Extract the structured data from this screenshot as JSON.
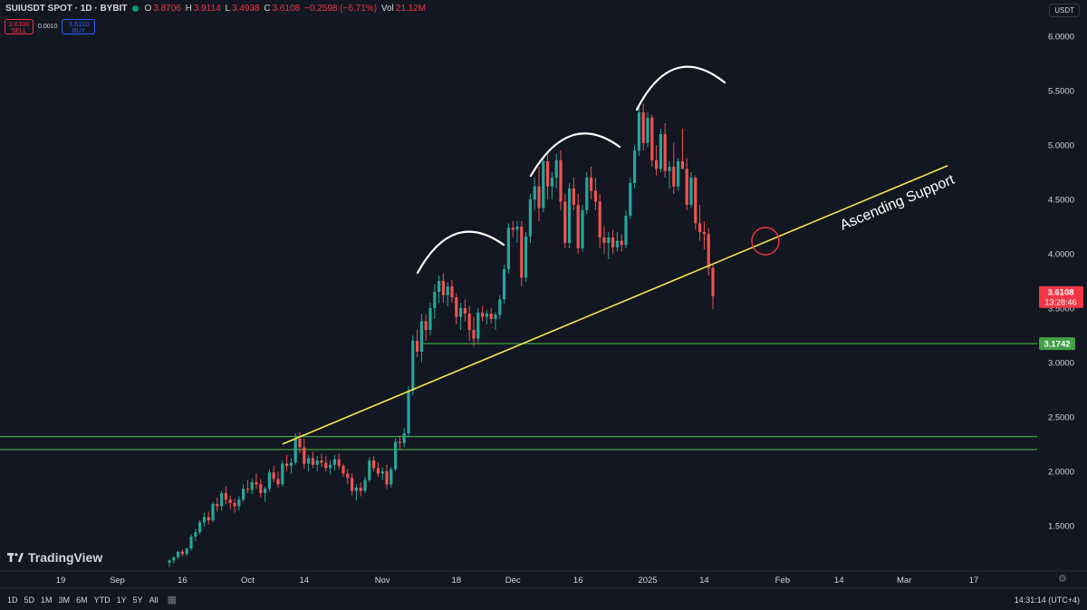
{
  "header": {
    "symbol": "SUIUSDT SPOT · 1D · BYBIT",
    "o_label": "O",
    "o_value": "3.8706",
    "h_label": "H",
    "h_value": "3.9114",
    "l_label": "L",
    "l_value": "3.4938",
    "c_label": "C",
    "c_value": "3.6108",
    "change": "−0.2598 (−6.71%)",
    "vol_label": "Vol",
    "vol_value": "21.12M"
  },
  "trade": {
    "sell_price": "3.6100",
    "sell_label": "SELL",
    "spread": "0.0010",
    "buy_price": "3.6110",
    "buy_label": "BUY"
  },
  "currency": "USDT",
  "brand": "TradingView",
  "timeframes": [
    "1D",
    "5D",
    "1M",
    "3M",
    "6M",
    "YTD",
    "1Y",
    "5Y",
    "All"
  ],
  "clock": "14:31:14 (UTC+4)",
  "colors": {
    "up": "#26a69a",
    "down": "#ef5350",
    "support_line": "#f6e94b",
    "level_line": "#43a047",
    "bg": "#131722"
  },
  "chart_data": {
    "type": "candlestick",
    "ylim": [
      1.15,
      6.1
    ],
    "y_ticks": [
      1.5,
      2.0,
      2.5,
      3.0,
      3.5,
      4.0,
      4.5,
      5.0,
      5.5,
      6.0
    ],
    "y_tick_labels": [
      "1.5000",
      "2.0000",
      "2.5000",
      "3.0000",
      "3.5000",
      "4.0000",
      "4.5000",
      "5.0000",
      "5.5000",
      "6.0000"
    ],
    "x_ticks": [
      {
        "label": "19",
        "date": "2024-08-19"
      },
      {
        "label": "Sep",
        "date": "2024-09-01"
      },
      {
        "label": "16",
        "date": "2024-09-16"
      },
      {
        "label": "Oct",
        "date": "2024-10-01"
      },
      {
        "label": "14",
        "date": "2024-10-14"
      },
      {
        "label": "Nov",
        "date": "2024-11-01"
      },
      {
        "label": "18",
        "date": "2024-11-18"
      },
      {
        "label": "Dec",
        "date": "2024-12-01"
      },
      {
        "label": "16",
        "date": "2024-12-16"
      },
      {
        "label": "2025",
        "date": "2025-01-01"
      },
      {
        "label": "14",
        "date": "2025-01-14"
      },
      {
        "label": "Feb",
        "date": "2025-02-01"
      },
      {
        "label": "14",
        "date": "2025-02-14"
      },
      {
        "label": "Mar",
        "date": "2025-03-01"
      },
      {
        "label": "17",
        "date": "2025-03-17"
      }
    ],
    "candles_start": "2024-09-13",
    "candles": [
      [
        1.16,
        1.19,
        1.12,
        1.18
      ],
      [
        1.18,
        1.22,
        1.15,
        1.21
      ],
      [
        1.21,
        1.27,
        1.19,
        1.26
      ],
      [
        1.26,
        1.28,
        1.22,
        1.24
      ],
      [
        1.24,
        1.3,
        1.22,
        1.29
      ],
      [
        1.29,
        1.42,
        1.27,
        1.4
      ],
      [
        1.4,
        1.47,
        1.36,
        1.44
      ],
      [
        1.44,
        1.55,
        1.42,
        1.53
      ],
      [
        1.53,
        1.62,
        1.49,
        1.58
      ],
      [
        1.58,
        1.63,
        1.51,
        1.55
      ],
      [
        1.55,
        1.72,
        1.53,
        1.7
      ],
      [
        1.7,
        1.76,
        1.63,
        1.68
      ],
      [
        1.68,
        1.82,
        1.64,
        1.8
      ],
      [
        1.8,
        1.86,
        1.7,
        1.74
      ],
      [
        1.74,
        1.78,
        1.65,
        1.71
      ],
      [
        1.71,
        1.75,
        1.62,
        1.68
      ],
      [
        1.68,
        1.77,
        1.64,
        1.74
      ],
      [
        1.74,
        1.88,
        1.72,
        1.84
      ],
      [
        1.84,
        1.92,
        1.8,
        1.83
      ],
      [
        1.83,
        1.93,
        1.79,
        1.9
      ],
      [
        1.9,
        1.98,
        1.84,
        1.88
      ],
      [
        1.88,
        1.93,
        1.76,
        1.8
      ],
      [
        1.8,
        1.86,
        1.72,
        1.84
      ],
      [
        1.84,
        2.02,
        1.81,
        1.99
      ],
      [
        1.99,
        2.05,
        1.9,
        1.93
      ],
      [
        1.93,
        2.0,
        1.85,
        1.88
      ],
      [
        1.88,
        2.1,
        1.86,
        2.07
      ],
      [
        2.07,
        2.15,
        2.0,
        2.05
      ],
      [
        2.05,
        2.12,
        1.98,
        2.08
      ],
      [
        2.08,
        2.35,
        2.06,
        2.3
      ],
      [
        2.3,
        2.36,
        2.17,
        2.22
      ],
      [
        2.22,
        2.3,
        2.02,
        2.07
      ],
      [
        2.07,
        2.15,
        2.0,
        2.12
      ],
      [
        2.12,
        2.18,
        2.03,
        2.06
      ],
      [
        2.06,
        2.14,
        2.0,
        2.1
      ],
      [
        2.1,
        2.16,
        2.04,
        2.08
      ],
      [
        2.08,
        2.14,
        2.0,
        2.03
      ],
      [
        2.03,
        2.1,
        1.97,
        2.06
      ],
      [
        2.06,
        2.15,
        2.01,
        2.11
      ],
      [
        2.11,
        2.16,
        2.02,
        2.05
      ],
      [
        2.05,
        2.07,
        1.95,
        1.98
      ],
      [
        1.98,
        2.02,
        1.88,
        1.94
      ],
      [
        1.94,
        1.98,
        1.78,
        1.82
      ],
      [
        1.82,
        1.88,
        1.73,
        1.85
      ],
      [
        1.85,
        1.9,
        1.77,
        1.82
      ],
      [
        1.82,
        1.95,
        1.8,
        1.92
      ],
      [
        1.92,
        2.13,
        1.9,
        2.1
      ],
      [
        2.1,
        2.14,
        2.0,
        2.03
      ],
      [
        2.03,
        2.08,
        1.95,
        1.98
      ],
      [
        1.98,
        2.04,
        1.92,
        2.0
      ],
      [
        2.0,
        2.06,
        1.84,
        1.88
      ],
      [
        1.88,
        2.04,
        1.85,
        2.02
      ],
      [
        2.02,
        2.3,
        2.0,
        2.27
      ],
      [
        2.27,
        2.33,
        2.2,
        2.26
      ],
      [
        2.26,
        2.4,
        2.22,
        2.35
      ],
      [
        2.35,
        2.78,
        2.31,
        2.74
      ],
      [
        2.74,
        3.25,
        2.7,
        3.2
      ],
      [
        3.2,
        3.3,
        3.05,
        3.1
      ],
      [
        3.1,
        3.45,
        3.0,
        3.38
      ],
      [
        3.38,
        3.44,
        3.2,
        3.3
      ],
      [
        3.3,
        3.55,
        3.25,
        3.5
      ],
      [
        3.5,
        3.72,
        3.4,
        3.65
      ],
      [
        3.65,
        3.8,
        3.55,
        3.75
      ],
      [
        3.75,
        3.82,
        3.55,
        3.62
      ],
      [
        3.62,
        3.74,
        3.52,
        3.7
      ],
      [
        3.7,
        3.76,
        3.55,
        3.6
      ],
      [
        3.6,
        3.64,
        3.35,
        3.42
      ],
      [
        3.42,
        3.55,
        3.3,
        3.5
      ],
      [
        3.5,
        3.58,
        3.38,
        3.45
      ],
      [
        3.45,
        3.52,
        3.2,
        3.3
      ],
      [
        3.3,
        3.42,
        3.15,
        3.22
      ],
      [
        3.22,
        3.5,
        3.18,
        3.46
      ],
      [
        3.46,
        3.52,
        3.38,
        3.42
      ],
      [
        3.42,
        3.48,
        3.35,
        3.45
      ],
      [
        3.45,
        3.5,
        3.36,
        3.4
      ],
      [
        3.4,
        3.46,
        3.3,
        3.44
      ],
      [
        3.44,
        3.62,
        3.4,
        3.58
      ],
      [
        3.58,
        3.9,
        3.54,
        3.86
      ],
      [
        3.86,
        4.28,
        3.82,
        4.24
      ],
      [
        4.24,
        4.3,
        4.15,
        4.22
      ],
      [
        4.22,
        4.3,
        4.1,
        4.25
      ],
      [
        4.25,
        4.3,
        3.7,
        3.78
      ],
      [
        3.78,
        4.2,
        3.74,
        4.16
      ],
      [
        4.16,
        4.55,
        4.1,
        4.5
      ],
      [
        4.5,
        4.7,
        4.4,
        4.62
      ],
      [
        4.62,
        4.8,
        4.3,
        4.42
      ],
      [
        4.42,
        4.9,
        4.38,
        4.85
      ],
      [
        4.85,
        4.92,
        4.5,
        4.62
      ],
      [
        4.62,
        4.75,
        4.5,
        4.7
      ],
      [
        4.7,
        4.92,
        4.6,
        4.86
      ],
      [
        4.86,
        4.95,
        4.4,
        4.48
      ],
      [
        4.48,
        4.55,
        4.05,
        4.1
      ],
      [
        4.1,
        4.65,
        4.05,
        4.6
      ],
      [
        4.6,
        4.7,
        4.4,
        4.45
      ],
      [
        4.45,
        4.55,
        4.0,
        4.05
      ],
      [
        4.05,
        4.45,
        4.02,
        4.4
      ],
      [
        4.4,
        4.75,
        4.36,
        4.7
      ],
      [
        4.7,
        4.8,
        4.5,
        4.58
      ],
      [
        4.58,
        4.7,
        4.4,
        4.48
      ],
      [
        4.48,
        4.55,
        4.05,
        4.15
      ],
      [
        4.15,
        4.25,
        4.0,
        4.1
      ],
      [
        4.1,
        4.2,
        3.95,
        4.15
      ],
      [
        4.15,
        4.22,
        4.0,
        4.06
      ],
      [
        4.06,
        4.2,
        4.02,
        4.12
      ],
      [
        4.12,
        4.18,
        4.02,
        4.08
      ],
      [
        4.08,
        4.4,
        4.05,
        4.35
      ],
      [
        4.35,
        4.7,
        4.32,
        4.65
      ],
      [
        4.65,
        5.0,
        4.6,
        4.95
      ],
      [
        4.95,
        5.35,
        4.9,
        5.3
      ],
      [
        5.3,
        5.38,
        4.95,
        5.02
      ],
      [
        5.02,
        5.3,
        4.98,
        5.25
      ],
      [
        5.25,
        5.28,
        4.8,
        4.86
      ],
      [
        4.86,
        5.0,
        4.72,
        4.78
      ],
      [
        4.78,
        5.15,
        4.75,
        5.1
      ],
      [
        5.1,
        5.2,
        4.7,
        4.76
      ],
      [
        4.76,
        4.85,
        4.6,
        4.8
      ],
      [
        4.8,
        5.02,
        4.55,
        4.62
      ],
      [
        4.62,
        4.88,
        4.58,
        4.85
      ],
      [
        4.85,
        5.15,
        4.78,
        4.78
      ],
      [
        4.78,
        4.88,
        4.4,
        4.45
      ],
      [
        4.45,
        4.75,
        4.42,
        4.7
      ],
      [
        4.7,
        4.72,
        4.22,
        4.28
      ],
      [
        4.28,
        4.45,
        4.12,
        4.2
      ],
      [
        4.2,
        4.3,
        4.04,
        4.18
      ],
      [
        4.18,
        4.24,
        3.8,
        3.87
      ],
      [
        3.87,
        3.91,
        3.49,
        3.61
      ]
    ],
    "support_levels": [
      3.1742,
      2.32,
      2.2
    ],
    "support_labels": [
      "3.1742"
    ],
    "trend_line": {
      "label": "Ascending Support",
      "from": [
        "2024-10-09",
        2.25
      ],
      "to": [
        "2025-03-11",
        4.81
      ]
    },
    "last_price": "3.6108",
    "countdown": "13:28:46"
  }
}
